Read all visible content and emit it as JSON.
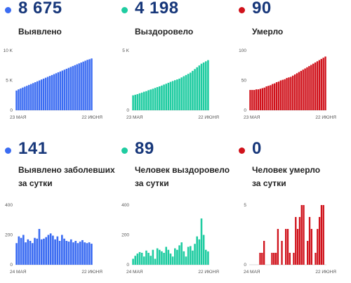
{
  "colors": {
    "blue": "#3b6cf2",
    "green": "#1fcca1",
    "red": "#d0121b",
    "number": "#17377a"
  },
  "panels": [
    {
      "number": "8 675",
      "label1": "Выявлено",
      "label2": "",
      "color": "blue",
      "chart": 0
    },
    {
      "number": "4 198",
      "label1": "Выздоровело",
      "label2": "",
      "color": "green",
      "chart": 1
    },
    {
      "number": "90",
      "label1": "Умерло",
      "label2": "",
      "color": "red",
      "chart": 2
    },
    {
      "number": "141",
      "label1": "Выявлено заболевших",
      "label2": "за сутки",
      "color": "blue",
      "chart": 3
    },
    {
      "number": "89",
      "label1": "Человек выздоровело",
      "label2": "за сутки",
      "color": "green",
      "chart": 4
    },
    {
      "number": "0",
      "label1": "Человек умерло",
      "label2": "за сутки",
      "color": "red",
      "chart": 5
    }
  ],
  "chart_data": [
    {
      "type": "bar",
      "title": "Выявлено",
      "ylim": [
        0,
        10000
      ],
      "yticks": [
        0,
        5000,
        10000
      ],
      "ytick_labels": [
        "0",
        "5 K",
        "10 K"
      ],
      "x_start_label": "23 МАЯ",
      "x_end_label": "22 ИЮНЯ",
      "color": "blue",
      "values": [
        3300,
        3500,
        3650,
        3800,
        3950,
        4100,
        4250,
        4400,
        4550,
        4700,
        4850,
        5000,
        5150,
        5300,
        5450,
        5600,
        5750,
        5900,
        6050,
        6200,
        6350,
        6500,
        6650,
        6800,
        6950,
        7100,
        7250,
        7400,
        7550,
        7700,
        7850,
        8000,
        8150,
        8300,
        8450,
        8550,
        8675
      ]
    },
    {
      "type": "bar",
      "title": "Выздоровело",
      "ylim": [
        0,
        5000
      ],
      "yticks": [
        0,
        5000
      ],
      "ytick_labels": [
        "0",
        "5 K"
      ],
      "x_start_label": "23 МАЯ",
      "x_end_label": "22 ИЮНЯ",
      "color": "green",
      "values": [
        1250,
        1300,
        1350,
        1420,
        1480,
        1550,
        1600,
        1680,
        1740,
        1800,
        1870,
        1940,
        2000,
        2070,
        2150,
        2220,
        2300,
        2380,
        2450,
        2520,
        2580,
        2650,
        2750,
        2850,
        2950,
        3050,
        3150,
        3300,
        3450,
        3600,
        3750,
        3900,
        4000,
        4100,
        4198
      ]
    },
    {
      "type": "bar",
      "title": "Умерло",
      "ylim": [
        0,
        100
      ],
      "yticks": [
        0,
        50,
        100
      ],
      "ytick_labels": [
        "0",
        "50",
        "100"
      ],
      "x_start_label": "23 МАЯ",
      "x_end_label": "22 ИЮНЯ",
      "color": "red",
      "values": [
        34,
        34,
        34,
        35,
        35,
        36,
        37,
        38,
        40,
        41,
        42,
        44,
        45,
        47,
        48,
        50,
        51,
        52,
        54,
        55,
        56,
        58,
        60,
        62,
        64,
        66,
        68,
        70,
        72,
        74,
        76,
        78,
        80,
        82,
        84,
        86,
        88,
        90
      ]
    },
    {
      "type": "bar",
      "title": "Выявлено заболевших за сутки",
      "ylim": [
        0,
        400
      ],
      "yticks": [
        0,
        200,
        400
      ],
      "ytick_labels": [
        "0",
        "200",
        "400"
      ],
      "x_start_label": "24 МАЯ",
      "x_end_label": "22 ИЮНЯ",
      "color": "blue",
      "values": [
        145,
        190,
        180,
        200,
        150,
        170,
        160,
        145,
        180,
        175,
        240,
        170,
        175,
        185,
        200,
        210,
        195,
        170,
        190,
        160,
        200,
        175,
        160,
        155,
        170,
        150,
        160,
        145,
        155,
        165,
        150,
        145,
        150,
        141
      ]
    },
    {
      "type": "bar",
      "title": "Человек выздоровело за сутки",
      "ylim": [
        0,
        400
      ],
      "yticks": [
        0,
        200,
        400
      ],
      "ytick_labels": [
        "0",
        "200",
        "400"
      ],
      "x_start_label": "24 МАЯ",
      "x_end_label": "22 ИЮНЯ",
      "color": "green",
      "values": [
        40,
        60,
        75,
        85,
        80,
        55,
        95,
        80,
        60,
        100,
        40,
        110,
        100,
        90,
        80,
        120,
        100,
        75,
        55,
        110,
        100,
        130,
        150,
        90,
        55,
        120,
        125,
        95,
        140,
        190,
        170,
        310,
        200,
        100,
        89
      ]
    },
    {
      "type": "bar",
      "title": "Человек умерло за сутки",
      "ylim": [
        0,
        5
      ],
      "yticks": [
        0,
        5
      ],
      "ytick_labels": [
        "0",
        "5"
      ],
      "x_start_label": "24 МАЯ",
      "x_end_label": "22 ИЮНЯ",
      "color": "red",
      "values": [
        0,
        0,
        0,
        0,
        0,
        1,
        1,
        2,
        0,
        0,
        0,
        1,
        1,
        1,
        3,
        0,
        2,
        0,
        3,
        3,
        1,
        0,
        1,
        4,
        3,
        4,
        5,
        5,
        0,
        2,
        4,
        3,
        0,
        1,
        3,
        4,
        5,
        5,
        0
      ]
    }
  ]
}
